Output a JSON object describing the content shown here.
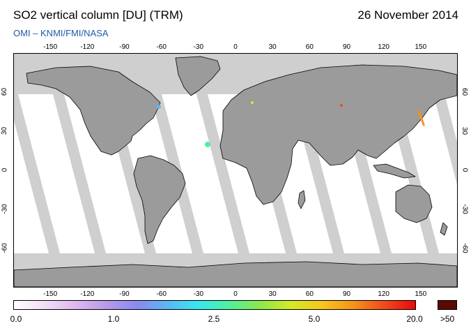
{
  "header": {
    "title": "SO2 vertical column [DU] (TRM)",
    "date": "26 November 2014",
    "subtitle": "OMI  –  KNMI/FMI/NASA"
  },
  "map": {
    "projection": "equirectangular",
    "lon_ticks": [
      "-150",
      "-120",
      "-90",
      "-60",
      "-30",
      "0",
      "30",
      "60",
      "90",
      "120",
      "150"
    ],
    "lat_ticks": [
      "60",
      "30",
      "0",
      "-30",
      "-60"
    ],
    "colors": {
      "land": "#9b9b9b",
      "no_data": "#cfcfcf",
      "ocean": "#ffffff",
      "coastline": "#000000"
    }
  },
  "colorbar": {
    "labels": [
      "0.0",
      "1.0",
      "2.5",
      "5.0",
      "20.0"
    ],
    "overflow_label": ">50",
    "gradient_stops": [
      "#ffffff",
      "#f3ddf5",
      "#dfb7ef",
      "#b79ae8",
      "#8a8af0",
      "#5ab8f6",
      "#38e8ee",
      "#52f09a",
      "#8ee84a",
      "#d6e828",
      "#f6c61e",
      "#f6921c",
      "#f04a1c",
      "#e60a0a"
    ],
    "overflow_color": "#5a0a00"
  }
}
